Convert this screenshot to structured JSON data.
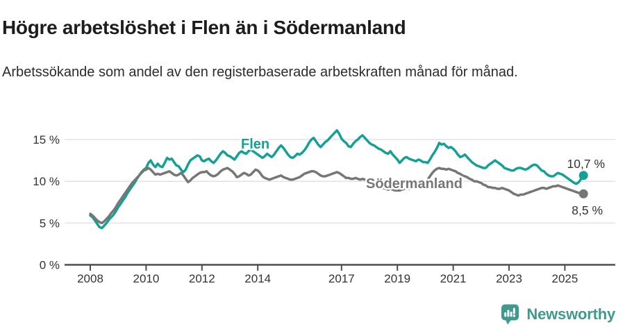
{
  "header": {
    "title": "Högre arbetslöshet i Flen än i Södermanland",
    "subtitle": "Arbetssökande som andel av den registerbaserade arbetskraften månad för månad."
  },
  "chart_data": {
    "type": "line",
    "title": "Högre arbetslöshet i Flen än i Södermanland",
    "subtitle": "Arbetssökande som andel av den registerbaserade arbetskraften månad för månad.",
    "unit": "%",
    "frequency": "monthly",
    "x_start": "2008-01",
    "x_end": "2025-09",
    "ylim": [
      0,
      17
    ],
    "grid": "horizontal",
    "legend_position": "inline-labels",
    "yticks": [
      0,
      5,
      10,
      15
    ],
    "ytick_labels": [
      "0 %",
      "5 %",
      "10 %",
      "15 %"
    ],
    "xticks": [
      2008,
      2010,
      2012,
      2014,
      2017,
      2019,
      2021,
      2023,
      2025
    ],
    "series": [
      {
        "name": "Flen",
        "color": "#14a096",
        "end_label": "10,7 %",
        "end_value": 10.7,
        "values": [
          5.9,
          5.7,
          5.3,
          4.9,
          4.5,
          4.4,
          4.7,
          5.0,
          5.4,
          5.7,
          6.0,
          6.4,
          6.9,
          7.3,
          7.7,
          8.1,
          8.6,
          9.0,
          9.4,
          9.8,
          10.3,
          10.7,
          11.1,
          11.4,
          11.6,
          12.2,
          12.5,
          12.0,
          11.7,
          12.1,
          11.8,
          11.7,
          12.2,
          12.8,
          12.6,
          12.7,
          12.3,
          11.9,
          11.8,
          11.4,
          11.1,
          11.4,
          12.0,
          12.5,
          12.7,
          12.9,
          13.1,
          13.0,
          12.5,
          12.4,
          12.6,
          12.7,
          12.4,
          12.2,
          12.5,
          12.9,
          13.3,
          13.6,
          13.4,
          13.1,
          13.0,
          12.8,
          12.6,
          13.0,
          13.4,
          13.6,
          13.4,
          13.3,
          13.6,
          13.8,
          13.6,
          13.4,
          13.2,
          13.0,
          12.8,
          13.0,
          13.3,
          13.1,
          12.9,
          13.2,
          13.6,
          14.0,
          14.3,
          14.0,
          13.6,
          13.2,
          12.9,
          12.8,
          13.0,
          13.3,
          13.2,
          13.4,
          13.7,
          14.1,
          14.6,
          15.0,
          15.2,
          14.8,
          14.4,
          14.1,
          14.4,
          14.7,
          14.9,
          15.2,
          15.5,
          15.8,
          16.1,
          15.7,
          15.1,
          14.8,
          14.6,
          14.2,
          14.1,
          14.5,
          14.8,
          15.0,
          15.3,
          15.5,
          15.2,
          14.9,
          14.6,
          14.4,
          14.3,
          14.1,
          13.9,
          13.8,
          13.6,
          13.4,
          13.3,
          13.6,
          13.2,
          12.9,
          12.6,
          12.2,
          12.5,
          12.8,
          12.9,
          12.7,
          12.6,
          12.5,
          12.4,
          12.6,
          12.5,
          12.3,
          12.3,
          12.2,
          12.6,
          13.1,
          13.5,
          14.0,
          14.6,
          14.4,
          14.5,
          14.2,
          14.0,
          14.1,
          13.9,
          13.6,
          13.2,
          12.9,
          13.0,
          13.2,
          12.9,
          12.6,
          12.3,
          12.1,
          11.9,
          11.8,
          11.7,
          11.6,
          11.6,
          11.9,
          12.1,
          12.3,
          12.5,
          12.3,
          12.1,
          11.9,
          11.6,
          11.5,
          11.4,
          11.3,
          11.3,
          11.5,
          11.6,
          11.6,
          11.5,
          11.4,
          11.5,
          11.7,
          11.9,
          12.0,
          11.9,
          11.6,
          11.3,
          11.2,
          10.9,
          10.7,
          10.6,
          10.6,
          10.8,
          11.0,
          10.9,
          10.8,
          10.6,
          10.4,
          10.2,
          10.0,
          9.8,
          9.7,
          9.9,
          10.3,
          10.7
        ]
      },
      {
        "name": "Södermanland",
        "color": "#767676",
        "end_label": "8,5 %",
        "end_value": 8.5,
        "values": [
          6.1,
          5.9,
          5.6,
          5.3,
          5.1,
          5.0,
          5.2,
          5.5,
          5.8,
          6.2,
          6.5,
          6.9,
          7.4,
          7.8,
          8.2,
          8.6,
          9.0,
          9.4,
          9.8,
          10.1,
          10.4,
          10.7,
          11.0,
          11.3,
          11.4,
          11.6,
          11.4,
          11.1,
          10.8,
          10.9,
          10.8,
          10.9,
          11.0,
          11.1,
          11.2,
          11.0,
          10.8,
          10.7,
          10.8,
          11.0,
          10.7,
          10.3,
          9.9,
          10.1,
          10.4,
          10.6,
          10.8,
          11.0,
          11.1,
          11.1,
          11.2,
          10.9,
          10.7,
          10.6,
          10.7,
          10.9,
          11.2,
          11.4,
          11.5,
          11.6,
          11.4,
          11.2,
          10.9,
          10.5,
          10.6,
          10.8,
          11.0,
          10.9,
          10.7,
          10.8,
          11.1,
          11.4,
          11.3,
          11.0,
          10.6,
          10.4,
          10.3,
          10.2,
          10.3,
          10.4,
          10.5,
          10.6,
          10.7,
          10.5,
          10.4,
          10.3,
          10.2,
          10.2,
          10.3,
          10.4,
          10.5,
          10.7,
          10.9,
          11.0,
          11.1,
          11.2,
          11.2,
          11.1,
          10.9,
          10.7,
          10.6,
          10.6,
          10.7,
          10.8,
          10.9,
          11.0,
          11.1,
          11.0,
          10.8,
          10.6,
          10.4,
          10.4,
          10.3,
          10.3,
          10.4,
          10.3,
          10.2,
          10.3,
          10.2,
          10.1,
          9.9,
          9.8,
          9.6,
          9.5,
          9.4,
          9.3,
          9.2,
          9.1,
          9.0,
          9.1,
          9.0,
          8.9,
          8.9,
          8.9,
          9.0,
          9.1,
          9.2,
          9.1,
          9.2,
          9.3,
          9.4,
          9.5,
          9.6,
          9.8,
          9.9,
          10.2,
          10.6,
          11.0,
          11.3,
          11.5,
          11.6,
          11.5,
          11.5,
          11.4,
          11.5,
          11.4,
          11.3,
          11.2,
          11.0,
          10.9,
          10.7,
          10.6,
          10.5,
          10.3,
          10.2,
          10.0,
          10.0,
          9.9,
          9.8,
          9.6,
          9.5,
          9.3,
          9.3,
          9.2,
          9.2,
          9.1,
          9.1,
          9.2,
          9.1,
          9.0,
          8.9,
          8.7,
          8.5,
          8.4,
          8.3,
          8.4,
          8.4,
          8.5,
          8.6,
          8.7,
          8.8,
          8.9,
          9.0,
          9.1,
          9.2,
          9.2,
          9.1,
          9.2,
          9.3,
          9.4,
          9.4,
          9.5,
          9.4,
          9.3,
          9.2,
          9.1,
          9.0,
          8.9,
          8.8,
          8.7,
          8.6,
          8.5,
          8.5
        ]
      }
    ]
  },
  "footer": {
    "brand": "Newsworthy"
  },
  "colors": {
    "flen": "#14a096",
    "sodermanland": "#767676",
    "grid": "#e3e3e3",
    "axis": "#4d4d4d",
    "tick_text": "#333333",
    "brand": "#3f998f",
    "title_text": "#1d1d1d"
  }
}
